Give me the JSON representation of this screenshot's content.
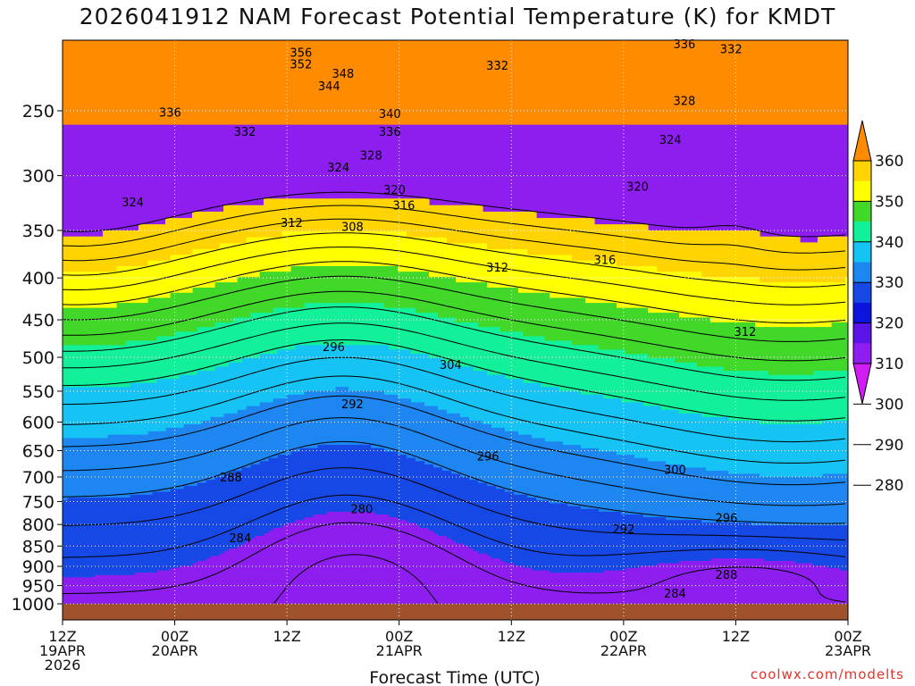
{
  "chart_data": {
    "type": "time-height contour",
    "title": "2026041912 NAM Forecast Potential Temperature (K) for KMDT",
    "xlabel": "Forecast Time (UTC)",
    "ylabel": "",
    "x_ticks": [
      {
        "hour": 0,
        "lines": [
          "12Z",
          "19APR",
          "2026"
        ]
      },
      {
        "hour": 12,
        "lines": [
          "00Z",
          "20APR"
        ]
      },
      {
        "hour": 24,
        "lines": [
          "12Z"
        ]
      },
      {
        "hour": 36,
        "lines": [
          "00Z",
          "21APR"
        ]
      },
      {
        "hour": 48,
        "lines": [
          "12Z"
        ]
      },
      {
        "hour": 60,
        "lines": [
          "00Z",
          "22APR"
        ]
      },
      {
        "hour": 72,
        "lines": [
          "12Z"
        ]
      },
      {
        "hour": 84,
        "lines": [
          "00Z",
          "23APR"
        ]
      }
    ],
    "xlim": [
      0,
      84
    ],
    "y_ticks": [
      250,
      300,
      350,
      400,
      450,
      500,
      550,
      600,
      650,
      700,
      750,
      800,
      850,
      900,
      950,
      1000
    ],
    "ylim": [
      200,
      1025
    ],
    "y_scale": "log-pressure (hPa)",
    "colorbar": {
      "labels": [
        360,
        350,
        340,
        330,
        320,
        310,
        300,
        290,
        280
      ],
      "colors": [
        "#ff8c00",
        "#ffd400",
        "#ffff00",
        "#42d82a",
        "#12f09a",
        "#15c4f5",
        "#1e86f0",
        "#1648e6",
        "#0a14dc",
        "#5a14e8",
        "#8e1ef0",
        "#d21cf5"
      ]
    },
    "shading_bands": [
      {
        "range": [
          280,
          290
        ],
        "color": "#8e1ef0"
      },
      {
        "range": [
          290,
          300
        ],
        "color": "#1648e6"
      },
      {
        "range": [
          300,
          310
        ],
        "color": "#1e86f0"
      },
      {
        "range": [
          310,
          320
        ],
        "color": "#15c4f5"
      },
      {
        "range": [
          320,
          330
        ],
        "color": "#12f09a"
      },
      {
        "range": [
          330,
          340
        ],
        "color": "#42d82a"
      },
      {
        "range": [
          340,
          350
        ],
        "color": "#ffff00"
      },
      {
        "range": [
          350,
          360
        ],
        "color": "#ffd400"
      }
    ],
    "contour_labels": [
      {
        "text": "356",
        "hour": 25.5,
        "p": 212
      },
      {
        "text": "352",
        "hour": 25.5,
        "p": 219
      },
      {
        "text": "348",
        "hour": 30,
        "p": 225
      },
      {
        "text": "344",
        "hour": 28.5,
        "p": 233
      },
      {
        "text": "340",
        "hour": 35,
        "p": 252
      },
      {
        "text": "336",
        "hour": 35,
        "p": 265
      },
      {
        "text": "336",
        "hour": 11.5,
        "p": 251
      },
      {
        "text": "332",
        "hour": 19.5,
        "p": 265
      },
      {
        "text": "328",
        "hour": 33,
        "p": 283
      },
      {
        "text": "324",
        "hour": 29.5,
        "p": 293
      },
      {
        "text": "320",
        "hour": 35.5,
        "p": 312
      },
      {
        "text": "316",
        "hour": 36.5,
        "p": 326
      },
      {
        "text": "312",
        "hour": 24.5,
        "p": 342
      },
      {
        "text": "308",
        "hour": 31,
        "p": 346
      },
      {
        "text": "312",
        "hour": 46.5,
        "p": 388
      },
      {
        "text": "316",
        "hour": 58,
        "p": 380
      },
      {
        "text": "320",
        "hour": 61.5,
        "p": 309
      },
      {
        "text": "324",
        "hour": 65,
        "p": 271
      },
      {
        "text": "324",
        "hour": 7.5,
        "p": 323
      },
      {
        "text": "332",
        "hour": 46.5,
        "p": 220
      },
      {
        "text": "328",
        "hour": 66.5,
        "p": 243
      },
      {
        "text": "336",
        "hour": 66.5,
        "p": 207
      },
      {
        "text": "332",
        "hour": 71.5,
        "p": 210
      },
      {
        "text": "312",
        "hour": 73,
        "p": 465
      },
      {
        "text": "296",
        "hour": 29,
        "p": 485
      },
      {
        "text": "304",
        "hour": 41.5,
        "p": 510
      },
      {
        "text": "292",
        "hour": 31,
        "p": 570
      },
      {
        "text": "296",
        "hour": 45.5,
        "p": 660
      },
      {
        "text": "300",
        "hour": 65.5,
        "p": 685
      },
      {
        "text": "288",
        "hour": 18,
        "p": 700
      },
      {
        "text": "280",
        "hour": 32,
        "p": 765
      },
      {
        "text": "284",
        "hour": 19,
        "p": 830
      },
      {
        "text": "292",
        "hour": 60,
        "p": 810
      },
      {
        "text": "296",
        "hour": 71,
        "p": 785
      },
      {
        "text": "288",
        "hour": 71,
        "p": 920
      },
      {
        "text": "284",
        "hour": 65.5,
        "p": 970
      }
    ]
  },
  "footer": {
    "credit": "coolwx.com/modelts"
  }
}
